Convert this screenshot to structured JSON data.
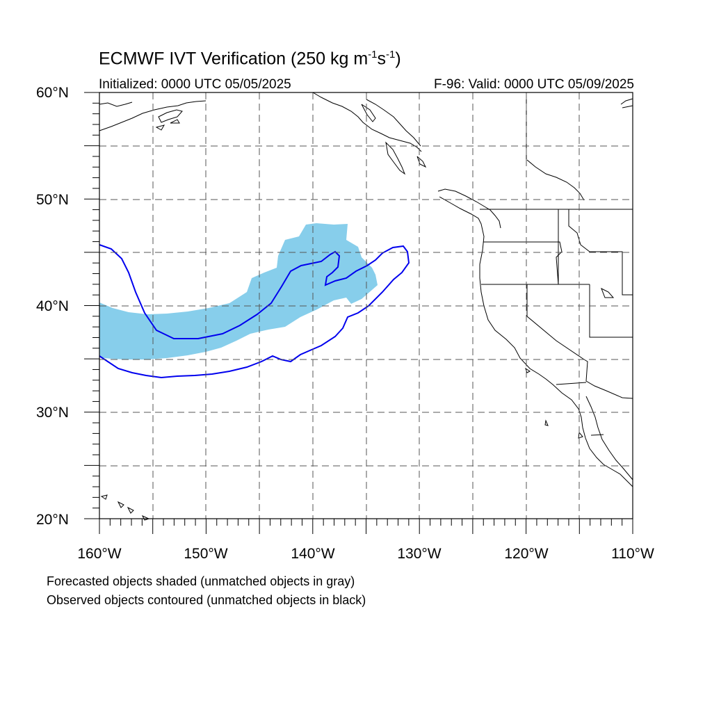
{
  "title": {
    "prefix": "ECMWF IVT Verification (250 kg m",
    "exp1": "-1",
    "mid": "s",
    "exp2": "-1",
    "suffix": ")"
  },
  "initialized": "Initialized: 0000 UTC 05/05/2025",
  "valid": "F-96: Valid: 0000 UTC 05/09/2025",
  "lat_labels": [
    "60°N",
    "50°N",
    "40°N",
    "30°N",
    "20°N"
  ],
  "lon_labels": [
    "160°W",
    "150°W",
    "140°W",
    "130°W",
    "120°W",
    "110°W"
  ],
  "notes": [
    "Forecasted objects shaded (unmatched objects in gray)",
    "Observed objects contoured (unmatched objects in black)"
  ],
  "map_extent": {
    "lon": [
      -160,
      -110
    ],
    "lat": [
      20,
      60
    ]
  },
  "colors": {
    "forecast_fill": "#87ceeb",
    "observed_contour": "#0000ee",
    "coastline": "#000000",
    "grid": "#555555"
  }
}
